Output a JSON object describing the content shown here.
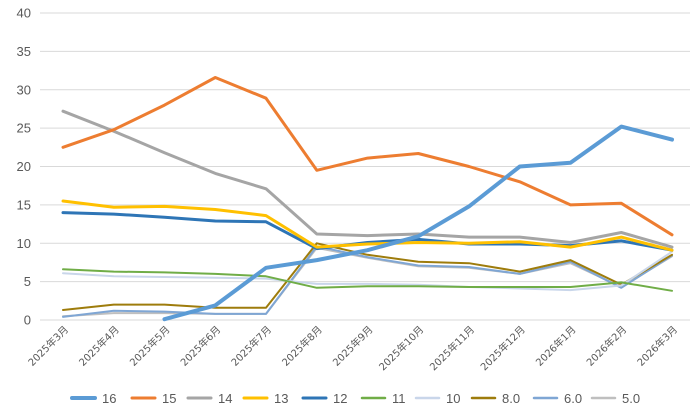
{
  "chart_data": {
    "type": "line",
    "title": "",
    "xlabel": "",
    "ylabel": "",
    "ylim": [
      0,
      40
    ],
    "yticks": [
      0,
      5,
      10,
      15,
      20,
      25,
      30,
      35,
      40
    ],
    "grid": "horizontal",
    "legend_position": "bottom",
    "categories": [
      "2025年3月",
      "2025年4月",
      "2025年5月",
      "2025年6月",
      "2025年7月",
      "2025年8月",
      "2025年9月",
      "2025年10月",
      "2025年11月",
      "2025年12月",
      "2026年1月",
      "2026年2月",
      "2026年3月"
    ],
    "series": [
      {
        "name": "16",
        "color": "#5B9BD5",
        "width": 4,
        "values": [
          null,
          null,
          0.1,
          1.9,
          6.8,
          7.8,
          9.1,
          10.9,
          14.8,
          20.0,
          20.5,
          25.2,
          23.5
        ]
      },
      {
        "name": "15",
        "color": "#ED7D31",
        "width": 3,
        "values": [
          22.5,
          24.8,
          28.0,
          31.6,
          28.9,
          19.5,
          21.1,
          21.7,
          20.0,
          18.0,
          15.0,
          15.2,
          11.1
        ]
      },
      {
        "name": "14",
        "color": "#A5A5A5",
        "width": 3,
        "values": [
          27.2,
          24.6,
          21.8,
          19.1,
          17.1,
          11.2,
          11.0,
          11.2,
          10.8,
          10.8,
          10.1,
          11.4,
          9.5
        ]
      },
      {
        "name": "13",
        "color": "#FFC000",
        "width": 3,
        "values": [
          15.5,
          14.7,
          14.8,
          14.4,
          13.6,
          9.5,
          9.9,
          10.1,
          10.0,
          10.2,
          9.5,
          10.8,
          9.1
        ]
      },
      {
        "name": "12",
        "color": "#2E75B6",
        "width": 3,
        "values": [
          14.0,
          13.8,
          13.4,
          12.9,
          12.8,
          9.3,
          10.1,
          10.5,
          9.9,
          9.9,
          9.7,
          10.3,
          9.1
        ]
      },
      {
        "name": "11",
        "color": "#70AD47",
        "width": 2,
        "values": [
          6.6,
          6.3,
          6.2,
          6.0,
          5.7,
          4.2,
          4.4,
          4.4,
          4.3,
          4.3,
          4.3,
          4.9,
          3.8
        ]
      },
      {
        "name": "10",
        "color": "#C9D6EA",
        "width": 2,
        "values": [
          6.1,
          5.7,
          5.6,
          5.5,
          5.4,
          4.7,
          4.7,
          4.6,
          4.3,
          4.1,
          3.9,
          4.5,
          8.9
        ]
      },
      {
        "name": "8.0",
        "color": "#9E7C0C",
        "width": 2,
        "values": [
          1.3,
          2.0,
          2.0,
          1.6,
          1.6,
          10.0,
          8.5,
          7.6,
          7.4,
          6.3,
          7.8,
          4.6,
          8.5
        ]
      },
      {
        "name": "6.0",
        "color": "#7FA6D4",
        "width": 2,
        "values": [
          0.4,
          1.2,
          1.1,
          0.8,
          0.8,
          9.6,
          8.2,
          7.1,
          6.9,
          6.0,
          7.6,
          4.2,
          8.4
        ]
      },
      {
        "name": "5.0",
        "color": "#BFBFBF",
        "width": 2,
        "values": [
          0.5,
          0.9,
          0.9,
          0.8,
          0.8,
          9.4,
          8.1,
          7.0,
          6.8,
          6.0,
          7.4,
          4.3,
          8.3
        ]
      }
    ]
  }
}
